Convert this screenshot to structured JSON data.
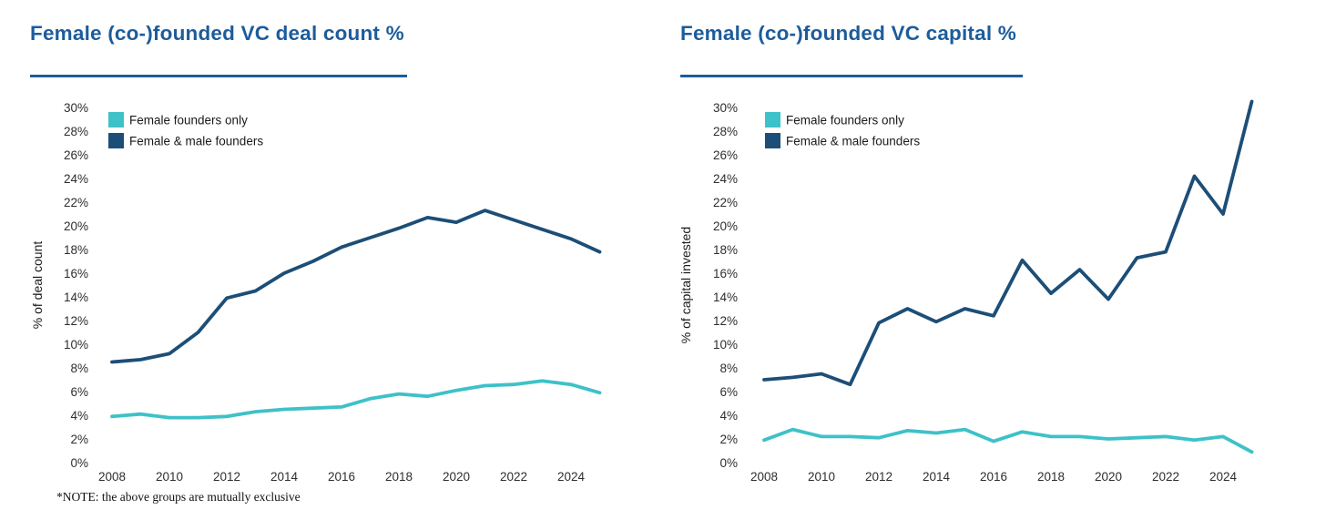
{
  "note": {
    "text": "*NOTE: the above groups are mutually exclusive"
  },
  "colors": {
    "title_blue": "#1d5c9c",
    "navy_series": "#1c4e77",
    "teal_series": "#3ec1c8",
    "axis_text": "#2e2e2e"
  },
  "chart_data": [
    {
      "type": "line",
      "title": "Female (co-)founded VC deal count %",
      "ylabel": "% of deal count",
      "ylim": [
        0,
        30
      ],
      "ytick_step": 2,
      "grid": false,
      "legend_position": "top-left",
      "x": [
        2008,
        2009,
        2010,
        2011,
        2012,
        2013,
        2014,
        2015,
        2016,
        2017,
        2018,
        2019,
        2020,
        2021,
        2022,
        2023,
        2024,
        2025
      ],
      "xticks": [
        2008,
        2010,
        2012,
        2014,
        2016,
        2018,
        2020,
        2022,
        2024
      ],
      "series": [
        {
          "name": "Female founders only",
          "color": "#3ec1c8",
          "values": [
            3.9,
            4.1,
            3.8,
            3.8,
            3.9,
            4.3,
            4.5,
            4.6,
            4.7,
            5.4,
            5.8,
            5.6,
            6.1,
            6.5,
            6.6,
            6.9,
            6.6,
            5.9
          ]
        },
        {
          "name": "Female & male founders",
          "color": "#1c4e77",
          "values": [
            8.5,
            8.7,
            9.2,
            11.0,
            13.9,
            14.5,
            16.0,
            17.0,
            18.2,
            19.0,
            19.8,
            20.7,
            20.3,
            21.3,
            20.5,
            19.7,
            18.9,
            17.8
          ]
        }
      ]
    },
    {
      "type": "line",
      "title": "Female (co-)founded VC capital %",
      "ylabel": "% of capital invested",
      "ylim": [
        0,
        30
      ],
      "ytick_step": 2,
      "grid": false,
      "legend_position": "top-left",
      "x": [
        2008,
        2009,
        2010,
        2011,
        2012,
        2013,
        2014,
        2015,
        2016,
        2017,
        2018,
        2019,
        2020,
        2021,
        2022,
        2023,
        2024,
        2025
      ],
      "xticks": [
        2008,
        2010,
        2012,
        2014,
        2016,
        2018,
        2020,
        2022,
        2024
      ],
      "series": [
        {
          "name": "Female founders only",
          "color": "#3ec1c8",
          "values": [
            1.9,
            2.8,
            2.2,
            2.2,
            2.1,
            2.7,
            2.5,
            2.8,
            1.8,
            2.6,
            2.2,
            2.2,
            2.0,
            2.1,
            2.2,
            1.9,
            2.2,
            0.9
          ]
        },
        {
          "name": "Female & male founders",
          "color": "#1c4e77",
          "values": [
            7.0,
            7.2,
            7.5,
            6.6,
            11.8,
            13.0,
            11.9,
            13.0,
            12.4,
            17.1,
            14.3,
            16.3,
            13.8,
            17.3,
            17.8,
            24.2,
            21.0,
            30.5
          ]
        }
      ]
    }
  ]
}
